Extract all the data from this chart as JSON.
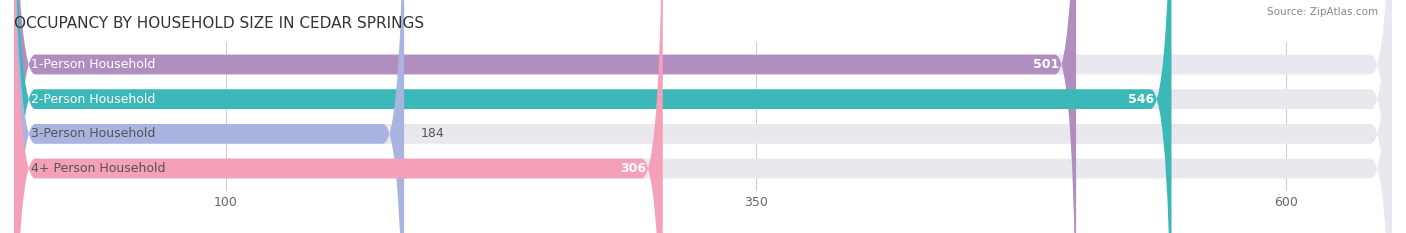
{
  "title": "OCCUPANCY BY HOUSEHOLD SIZE IN CEDAR SPRINGS",
  "source": "Source: ZipAtlas.com",
  "categories": [
    "1-Person Household",
    "2-Person Household",
    "3-Person Household",
    "4+ Person Household"
  ],
  "values": [
    501,
    546,
    184,
    306
  ],
  "colors": [
    "#b08ec0",
    "#3db8b8",
    "#aab4e0",
    "#f4a0b8"
  ],
  "bar_bg_color": "#e8e8ee",
  "xlim": [
    0,
    650
  ],
  "xticks": [
    100,
    350,
    600
  ],
  "title_fontsize": 11,
  "label_fontsize": 9,
  "value_fontsize": 9,
  "bar_height": 0.55,
  "figsize": [
    14.06,
    2.33
  ],
  "dpi": 100
}
